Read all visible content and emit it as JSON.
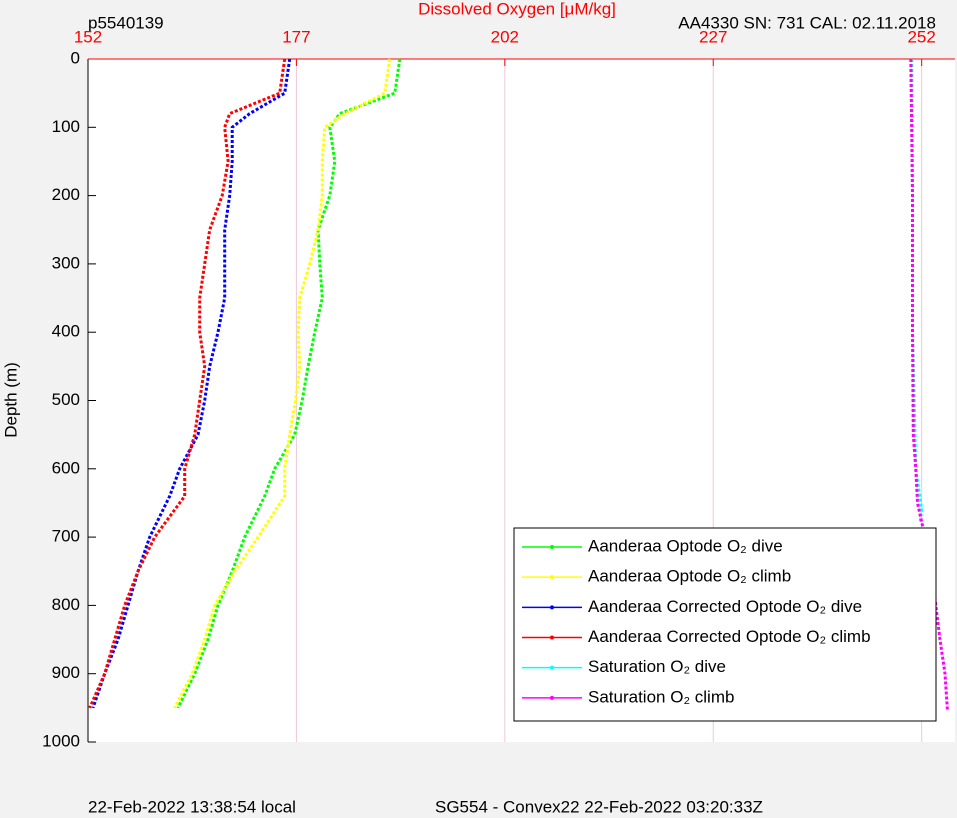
{
  "chart_data": {
    "type": "profile",
    "title": "Dissolved Oxygen [μM/kg]",
    "id_text": "p5540139",
    "sensor_text": "AA4330   SN: 731   CAL: 02.11.2018",
    "ylabel": "Depth (m)",
    "footer_left": "22-Feb-2022 13:38:54 local",
    "footer_right": "SG554 - Convex22 22-Feb-2022 03:20:33Z",
    "xlim": [
      152,
      256
    ],
    "xticks": [
      152,
      177,
      202,
      227,
      252
    ],
    "ylim": [
      0,
      1000
    ],
    "yticks": [
      0,
      100,
      200,
      300,
      400,
      500,
      600,
      700,
      800,
      900,
      1000
    ],
    "y_inverted": true,
    "grid": true,
    "legend_position": "lower-right",
    "series": [
      {
        "name": "Aanderaa Optode O₂ dive",
        "color": "#00ff00",
        "x": [
          189.4,
          188.8,
          182.2,
          181,
          181.6,
          181,
          179.6,
          179.8,
          180.1,
          179.2,
          178.4,
          177.7,
          176.8,
          174.4,
          173.2,
          170.8,
          169.3,
          167.6,
          166.4,
          164.8,
          162.8
        ],
        "y": [
          0,
          50,
          80,
          100,
          150,
          200,
          250,
          300,
          350,
          400,
          450,
          500,
          550,
          600,
          640,
          700,
          750,
          800,
          850,
          900,
          950
        ]
      },
      {
        "name": "Aanderaa Optode O₂ climb",
        "color": "#ffff00",
        "x": [
          188.2,
          187.6,
          182.8,
          180.4,
          180.1,
          180.1,
          179.6,
          178.6,
          177.4,
          177.2,
          177.4,
          176.9,
          176.2,
          175.6,
          175.6,
          172.4,
          169.6,
          167.2,
          166,
          164.5,
          162.4
        ],
        "y": [
          0,
          50,
          80,
          100,
          150,
          200,
          250,
          300,
          350,
          400,
          450,
          500,
          550,
          600,
          640,
          700,
          750,
          800,
          850,
          900,
          950
        ]
      },
      {
        "name": "Aanderaa Corrected Optode O₂ dive",
        "color": "#0000ff",
        "x": [
          176.2,
          175.6,
          171.4,
          169.3,
          169.3,
          169,
          168.4,
          168.4,
          168.4,
          167.6,
          166.6,
          166,
          165.2,
          163,
          161.8,
          159.4,
          158,
          156.8,
          155.6,
          154,
          152.6
        ],
        "y": [
          0,
          50,
          80,
          100,
          150,
          200,
          250,
          300,
          350,
          400,
          450,
          500,
          550,
          600,
          640,
          700,
          750,
          800,
          850,
          900,
          950
        ]
      },
      {
        "name": "Aanderaa Corrected Optode O₂ climb",
        "color": "#ff0000",
        "x": [
          175.6,
          175,
          169,
          168.4,
          168.8,
          168.1,
          166.6,
          166,
          165.4,
          165.4,
          166,
          165.4,
          164.8,
          163.6,
          163.6,
          160,
          158,
          156.4,
          155.2,
          154,
          152.2
        ],
        "y": [
          0,
          50,
          80,
          100,
          150,
          200,
          250,
          300,
          350,
          400,
          450,
          500,
          550,
          600,
          640,
          700,
          750,
          800,
          850,
          900,
          950
        ]
      },
      {
        "name": "Saturation O₂ dive",
        "color": "#00ffff",
        "x": [
          250.8,
          250.9,
          250.9,
          251.3,
          252,
          251.8
        ],
        "y": [
          0,
          200,
          400,
          600,
          660,
          680
        ]
      },
      {
        "name": "Saturation O₂ climb",
        "color": "#ff00ff",
        "x": [
          250.7,
          250.9,
          250.9,
          251,
          251.3,
          251.5,
          252.4,
          253.2,
          253.7,
          254.2,
          254.8,
          255.1
        ],
        "y": [
          0,
          200,
          400,
          550,
          600,
          650,
          700,
          750,
          800,
          850,
          900,
          955
        ]
      }
    ]
  }
}
